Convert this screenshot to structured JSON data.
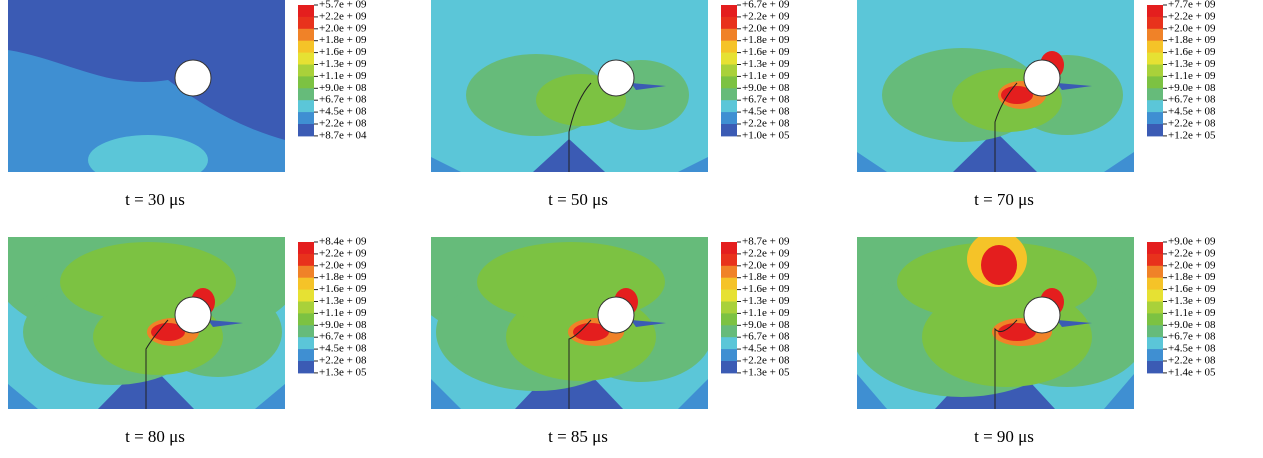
{
  "panels": [
    {
      "caption": "t = 30 μs",
      "legend": [
        "+5.7e + 09",
        "+2.2e + 09",
        "+2.0e + 09",
        "+1.8e + 09",
        "+1.6e + 09",
        "+1.3e + 09",
        "+1.1e + 09",
        "+9.0e + 08",
        "+6.7e + 08",
        "+4.5e + 08",
        "+2.2e + 08",
        "+8.7e + 04"
      ]
    },
    {
      "caption": "t = 50 μs",
      "legend": [
        "+6.7e + 09",
        "+2.2e + 09",
        "+2.0e + 09",
        "+1.8e + 09",
        "+1.6e + 09",
        "+1.3e + 09",
        "+1.1e + 09",
        "+9.0e + 08",
        "+6.7e + 08",
        "+4.5e + 08",
        "+2.2e + 08",
        "+1.0e + 05"
      ]
    },
    {
      "caption": "t = 70 μs",
      "legend": [
        "+7.7e + 09",
        "+2.2e + 09",
        "+2.0e + 09",
        "+1.8e + 09",
        "+1.6e + 09",
        "+1.3e + 09",
        "+1.1e + 09",
        "+9.0e + 08",
        "+6.7e + 08",
        "+4.5e + 08",
        "+2.2e + 08",
        "+1.2e + 05"
      ]
    },
    {
      "caption": "t = 80 μs",
      "legend": [
        "+8.4e + 09",
        "+2.2e + 09",
        "+2.0e + 09",
        "+1.8e + 09",
        "+1.6e + 09",
        "+1.3e + 09",
        "+1.1e + 09",
        "+9.0e + 08",
        "+6.7e + 08",
        "+4.5e + 08",
        "+2.2e + 08",
        "+1.3e + 05"
      ]
    },
    {
      "caption": "t = 85 μs",
      "legend": [
        "+8.7e + 09",
        "+2.2e + 09",
        "+2.0e + 09",
        "+1.8e + 09",
        "+1.6e + 09",
        "+1.3e + 09",
        "+1.1e + 09",
        "+9.0e + 08",
        "+6.7e + 08",
        "+4.5e + 08",
        "+2.2e + 08",
        "+1.3e + 05"
      ]
    },
    {
      "caption": "t = 90 μs",
      "legend": [
        "+9.0e + 09",
        "+2.2e + 09",
        "+2.0e + 09",
        "+1.8e + 09",
        "+1.6e + 09",
        "+1.3e + 09",
        "+1.1e + 09",
        "+9.0e + 08",
        "+6.7e + 08",
        "+4.5e + 08",
        "+2.2e + 08",
        "+1.4e + 05"
      ]
    }
  ]
}
